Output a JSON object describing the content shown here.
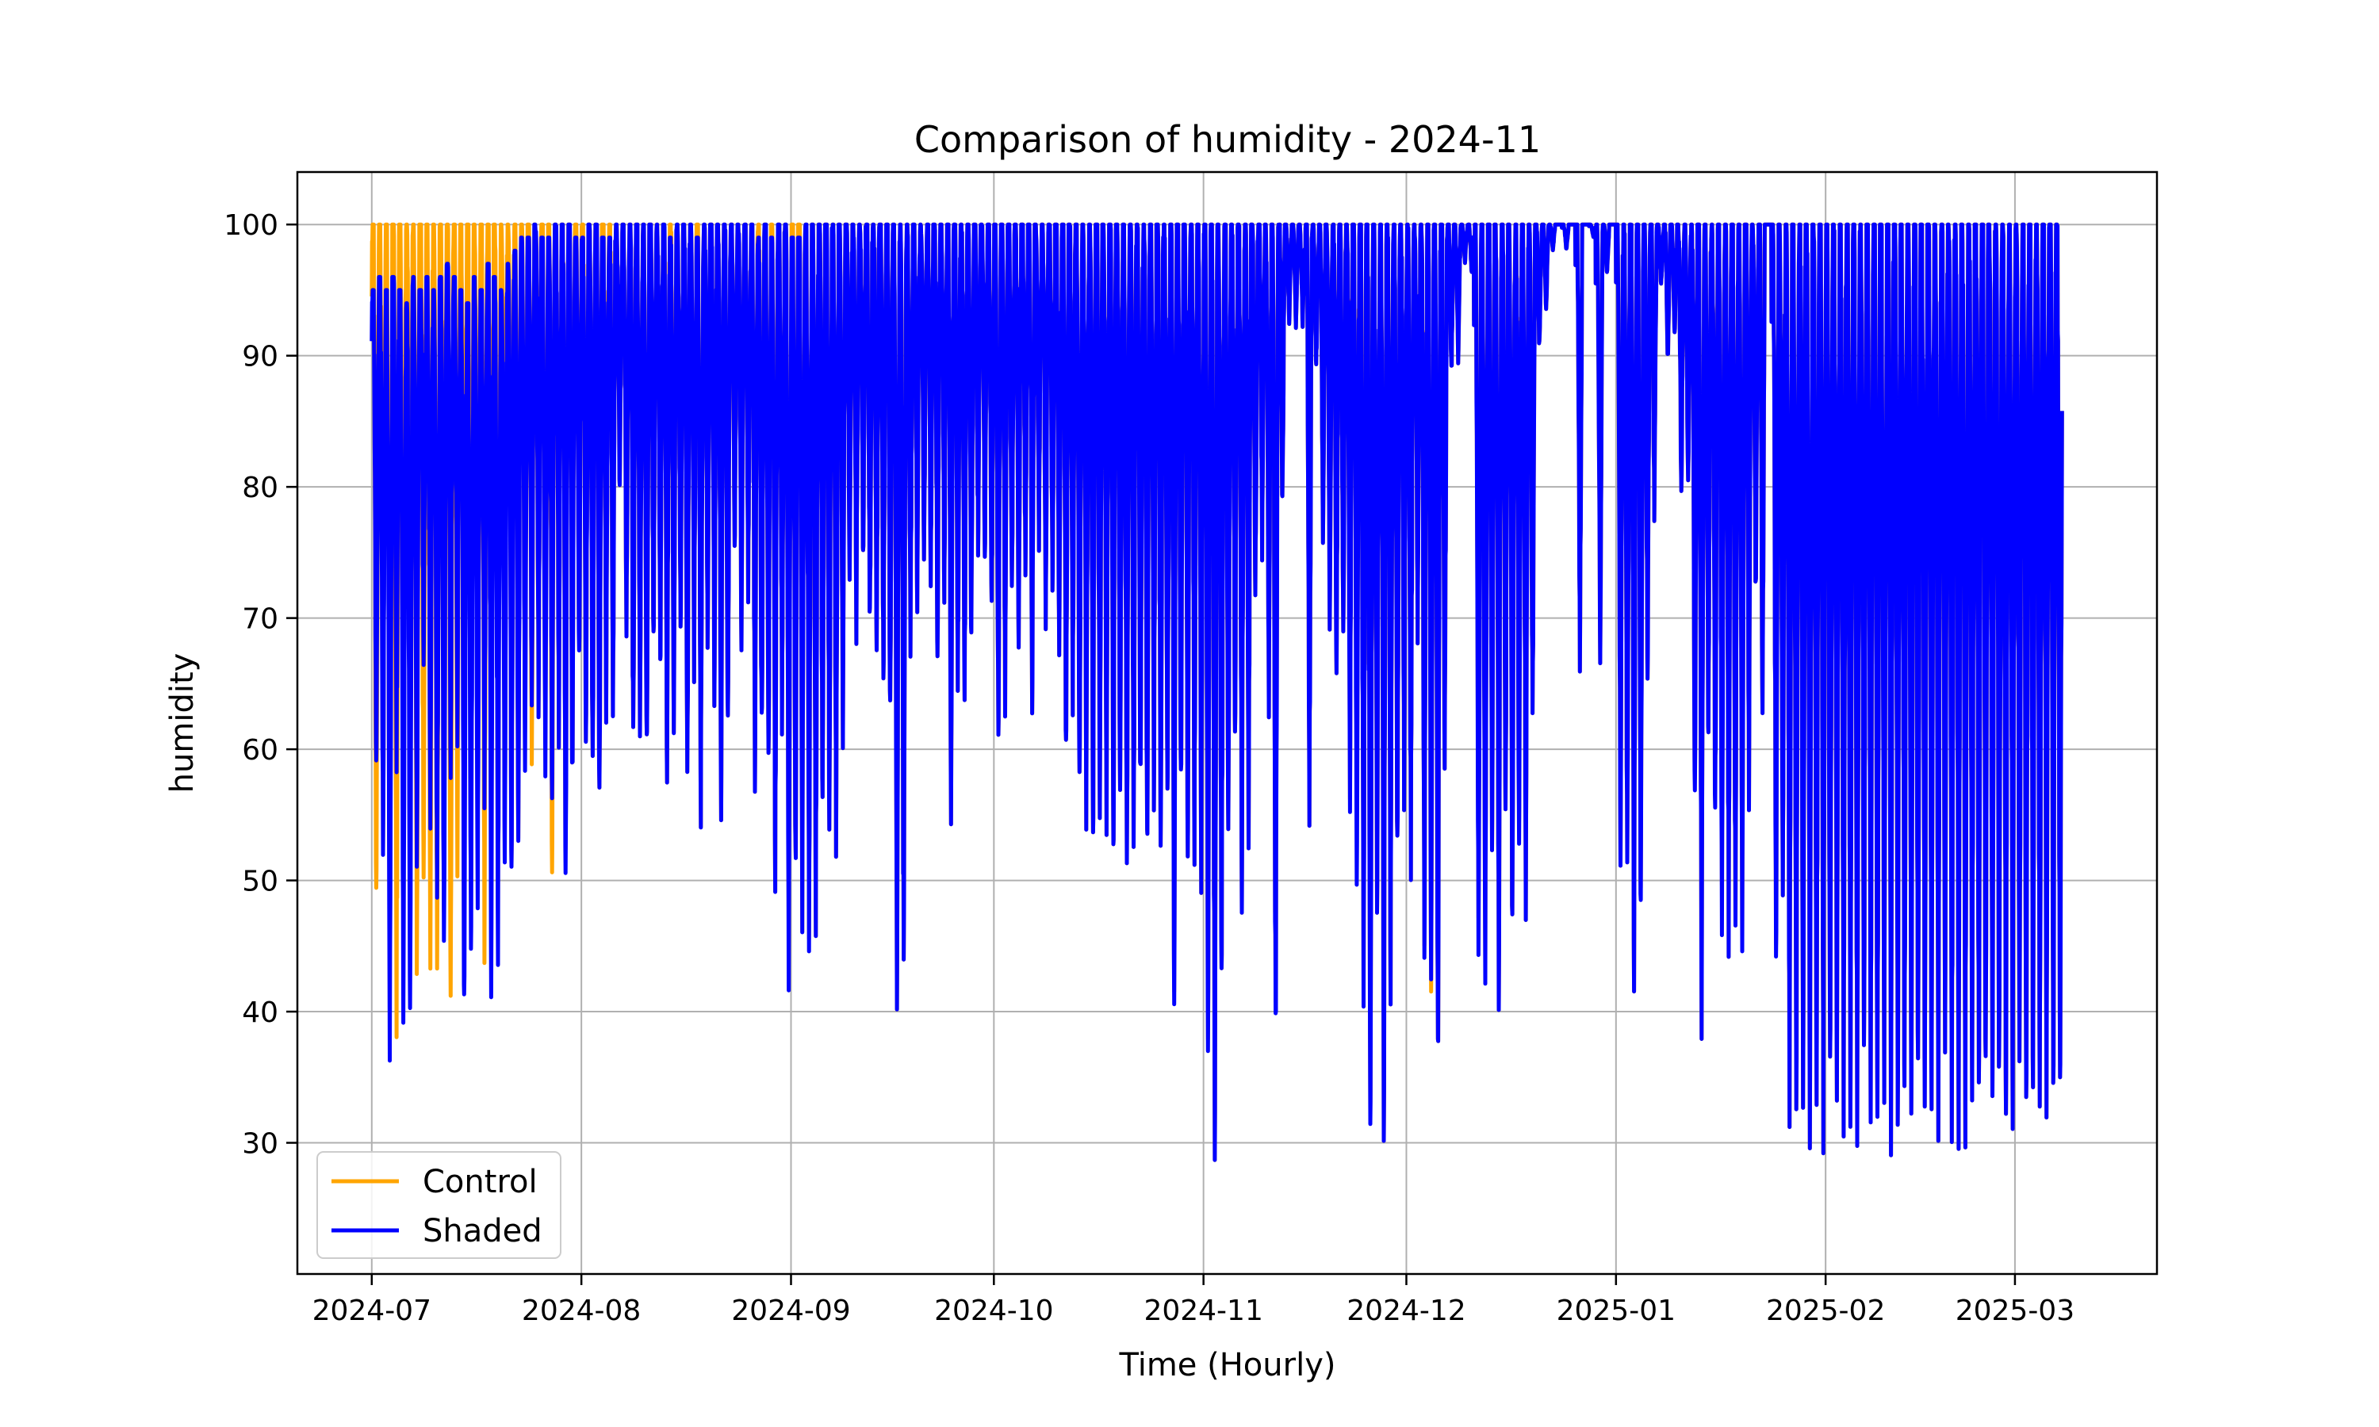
{
  "chart_data": {
    "type": "line",
    "title": "Comparison of humidity - 2024-11",
    "xlabel": "Time (Hourly)",
    "ylabel": "humidity",
    "xlim": [
      "2024-06-20",
      "2025-03-22"
    ],
    "ylim": [
      20,
      104
    ],
    "x_ticks": [
      "2024-07",
      "2024-08",
      "2024-09",
      "2024-10",
      "2024-11",
      "2024-12",
      "2025-01",
      "2025-02",
      "2025-03"
    ],
    "y_ticks": [
      30,
      40,
      50,
      60,
      70,
      80,
      90,
      100
    ],
    "grid": true,
    "legend_position": "lower-left",
    "x_start": "2024-07-01",
    "x_end": "2025-03-08",
    "series": [
      {
        "name": "Control",
        "color": "#FFA500",
        "daily_min": [
          45,
          50,
          37,
          36,
          48,
          43,
          39,
          46,
          42,
          40,
          42,
          37,
          50,
          42,
          45,
          53,
          43,
          46,
          46,
          55,
          47,
          48,
          61,
          55,
          62,
          58,
          48,
          60,
          48,
          55,
          66,
          58,
          55,
          52,
          62,
          60,
          78,
          68,
          57,
          59,
          56,
          65,
          64,
          55,
          58,
          67,
          55,
          65,
          53,
          66,
          63,
          52,
          58,
          73,
          66,
          71,
          56,
          58,
          55,
          48,
          60,
          42,
          47,
          45,
          42,
          44,
          52,
          52,
          50,
          60,
          70,
          68,
          72,
          67,
          66,
          63,
          60,
          37,
          38,
          66,
          70,
          72,
          71,
          65,
          70,
          53,
          62,
          61,
          66,
          74,
          73,
          68,
          58,
          62,
          70,
          65,
          72,
          62,
          74,
          68,
          71,
          64,
          56,
          62,
          54,
          53,
          50,
          52,
          53,
          48,
          52,
          47,
          49,
          54,
          48,
          55,
          49,
          52,
          40,
          53,
          49,
          51,
          49,
          32,
          24,
          38,
          50,
          58,
          47,
          51,
          70,
          74,
          60,
          33,
          77,
          92,
          92,
          92,
          54,
          88,
          75,
          68,
          64,
          65,
          55,
          52,
          40,
          25,
          45,
          27,
          40,
          48,
          55,
          50,
          68,
          42,
          37,
          31,
          56,
          88,
          89,
          97,
          96,
          44,
          40,
          50,
          38,
          52,
          43,
          50,
          45,
          60,
          90,
          93,
          98,
          100,
          98,
          100,
          65,
          100,
          99,
          65,
          96,
          100,
          50,
          46,
          40,
          45,
          63,
          77,
          95,
          89,
          91,
          78,
          78,
          52,
          37,
          58,
          52,
          48,
          44,
          43,
          45,
          55,
          70,
          60,
          100,
          40,
          44,
          30,
          30,
          28,
          28,
          28,
          29
        ],
        "daily_max": [
          100,
          100,
          100,
          100,
          100,
          100,
          100,
          100,
          100,
          100,
          100,
          100,
          100,
          100,
          100,
          100,
          100,
          100,
          100,
          100,
          100,
          100,
          100,
          100,
          100,
          100,
          100,
          100,
          100,
          100,
          100,
          100,
          100,
          100,
          100,
          100,
          100,
          100,
          100,
          100,
          100,
          100,
          100,
          100,
          100,
          100,
          100,
          100,
          100,
          100,
          100,
          100,
          100,
          100,
          100,
          100,
          100,
          100,
          100,
          100,
          100,
          100,
          100,
          100,
          100,
          100,
          100,
          100,
          100,
          100,
          100,
          100,
          100,
          100,
          100,
          100,
          100,
          100,
          100,
          100,
          100,
          100,
          100,
          100,
          100,
          100,
          100,
          100,
          100,
          100,
          100,
          100,
          100,
          100,
          100,
          100,
          100,
          100,
          100,
          100,
          100,
          100,
          100,
          100,
          100,
          100,
          100,
          100,
          100,
          100,
          100,
          100,
          100,
          100,
          100,
          100,
          100,
          100,
          100,
          100,
          100,
          100,
          100,
          100,
          100,
          100,
          100,
          100,
          100,
          100,
          100,
          100,
          100,
          100,
          100,
          100,
          100,
          100,
          100,
          100,
          100,
          100,
          100,
          100,
          100,
          100,
          100,
          100,
          100,
          100,
          100,
          100,
          100,
          100,
          100,
          100,
          100,
          100,
          100,
          100,
          100,
          100,
          100,
          100,
          100,
          100,
          100,
          100,
          100,
          100,
          100,
          100,
          100,
          100,
          100,
          100,
          100,
          100,
          100,
          100,
          100,
          100,
          100,
          100,
          100,
          100,
          100,
          100,
          100,
          100,
          100,
          100,
          100,
          100,
          100,
          100,
          100,
          100,
          100,
          100,
          100,
          100,
          100,
          100,
          100,
          100,
          100,
          100,
          100,
          100,
          100,
          100,
          100,
          100,
          100,
          100,
          100,
          100,
          100,
          100,
          100
        ]
      },
      {
        "name": "Shaded",
        "color": "#0000FF",
        "daily_min": [
          56,
          50,
          33,
          57,
          38,
          37,
          48,
          64,
          53,
          46,
          40,
          55,
          60,
          37,
          41,
          46,
          55,
          39,
          42,
          50,
          47,
          48,
          58,
          60,
          62,
          55,
          54,
          60,
          46,
          55,
          65,
          58,
          55,
          52,
          62,
          60,
          78,
          68,
          57,
          59,
          56,
          65,
          64,
          55,
          58,
          67,
          55,
          65,
          53,
          66,
          63,
          52,
          58,
          73,
          66,
          71,
          56,
          58,
          55,
          48,
          60,
          39,
          47,
          45,
          41,
          44,
          52,
          52,
          50,
          60,
          70,
          68,
          72,
          67,
          66,
          63,
          60,
          37,
          38,
          66,
          70,
          72,
          71,
          65,
          70,
          53,
          62,
          61,
          66,
          74,
          73,
          68,
          58,
          62,
          70,
          65,
          72,
          62,
          74,
          68,
          71,
          64,
          56,
          62,
          54,
          53,
          50,
          52,
          53,
          48,
          52,
          47,
          49,
          54,
          48,
          55,
          49,
          52,
          39,
          53,
          49,
          51,
          49,
          31,
          24,
          38,
          50,
          58,
          47,
          51,
          70,
          74,
          60,
          32,
          77,
          92,
          92,
          92,
          54,
          88,
          75,
          68,
          64,
          65,
          54,
          46,
          38,
          24,
          45,
          27,
          40,
          48,
          55,
          50,
          68,
          41,
          38,
          31,
          56,
          88,
          89,
          97,
          96,
          41,
          38,
          50,
          38,
          52,
          43,
          48,
          45,
          60,
          90,
          93,
          98,
          100,
          98,
          100,
          65,
          100,
          99,
          65,
          96,
          100,
          50,
          46,
          40,
          44,
          63,
          77,
          95,
          89,
          91,
          78,
          78,
          51,
          37,
          58,
          50,
          44,
          44,
          43,
          44,
          55,
          70,
          60,
          100,
          39,
          44,
          30,
          30,
          28,
          28,
          28,
          29
        ],
        "daily_max": [
          95,
          96,
          95,
          96,
          95,
          94,
          96,
          95,
          96,
          95,
          96,
          97,
          96,
          95,
          94,
          96,
          95,
          97,
          96,
          95,
          97,
          98,
          99,
          99,
          100,
          99,
          99,
          100,
          100,
          100,
          99,
          99,
          100,
          100,
          99,
          99,
          100,
          100,
          100,
          100,
          100,
          100,
          100,
          100,
          99,
          100,
          100,
          100,
          99,
          100,
          100,
          100,
          100,
          100,
          100,
          100,
          100,
          99,
          100,
          99,
          100,
          100,
          99,
          99,
          100,
          100,
          100,
          100,
          100,
          100,
          100,
          100,
          100,
          100,
          100,
          100,
          100,
          100,
          100,
          100,
          100,
          100,
          100,
          100,
          100,
          100,
          100,
          100,
          100,
          100,
          100,
          100,
          100,
          100,
          100,
          100,
          100,
          100,
          100,
          100,
          100,
          100,
          100,
          100,
          100,
          100,
          100,
          100,
          100,
          100,
          100,
          100,
          100,
          100,
          100,
          100,
          100,
          100,
          100,
          100,
          100,
          100,
          100,
          100,
          100,
          100,
          100,
          100,
          100,
          100,
          100,
          100,
          100,
          100,
          100,
          100,
          100,
          100,
          100,
          100,
          100,
          100,
          100,
          100,
          100,
          100,
          100,
          100,
          100,
          100,
          100,
          100,
          100,
          100,
          100,
          100,
          100,
          100,
          100,
          100,
          100,
          100,
          100,
          100,
          100,
          100,
          100,
          100,
          100,
          100,
          100,
          100,
          100,
          100,
          100,
          100,
          100,
          100,
          100,
          100,
          100,
          100,
          100,
          100,
          100,
          100,
          100,
          100,
          100,
          100,
          100,
          100,
          100,
          100,
          100,
          100,
          100,
          100,
          100,
          100,
          100,
          100,
          100,
          100,
          100,
          100,
          100,
          100,
          100,
          100,
          100,
          100,
          100,
          100,
          100,
          100,
          100,
          100,
          100,
          100,
          100
        ]
      }
    ]
  }
}
